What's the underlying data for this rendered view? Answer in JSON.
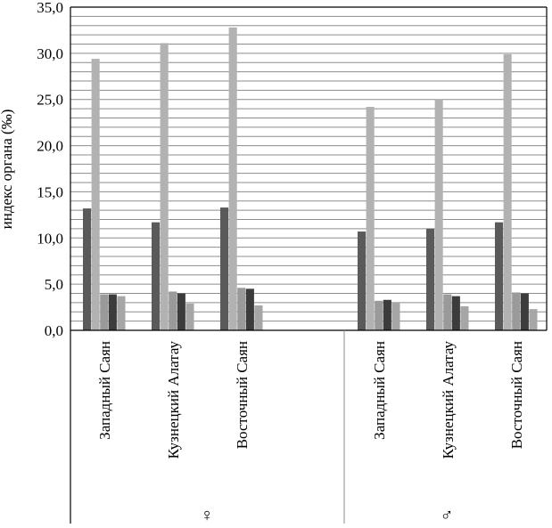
{
  "chart_data": {
    "type": "bar",
    "ylabel": "индекс органа (‰)",
    "ylim": [
      0,
      35
    ],
    "yticks": [
      0,
      5,
      10,
      15,
      20,
      25,
      30,
      35
    ],
    "ytick_labels": [
      "0,0",
      "5,0",
      "10,0",
      "15,0",
      "20,0",
      "25,0",
      "30,0",
      "35,0"
    ],
    "grid": "horizontal, every 1 unit",
    "legend": "none",
    "groups": [
      {
        "name": "♀",
        "categories": [
          "Западный Саян",
          "Кузнецкий Алатау",
          "Восточный Саян"
        ],
        "values": [
          [
            13.2,
            29.4,
            3.9,
            3.9,
            3.7
          ],
          [
            11.7,
            31.1,
            4.2,
            4.0,
            2.9
          ],
          [
            13.3,
            32.8,
            4.6,
            4.5,
            2.7
          ]
        ]
      },
      {
        "name": "♂",
        "categories": [
          "Западный Саян",
          "Кузнецкий Алатау",
          "Восточный Саян"
        ],
        "values": [
          [
            10.7,
            24.2,
            3.2,
            3.3,
            3.0
          ],
          [
            11.0,
            25.0,
            3.9,
            3.7,
            2.6
          ],
          [
            11.7,
            29.9,
            4.1,
            4.0,
            2.3
          ]
        ]
      }
    ],
    "bar_colors": [
      "#5a5a5a",
      "#b2b2b2",
      "#9a9a9a",
      "#3c3c3c",
      "#a6a6a6"
    ]
  }
}
